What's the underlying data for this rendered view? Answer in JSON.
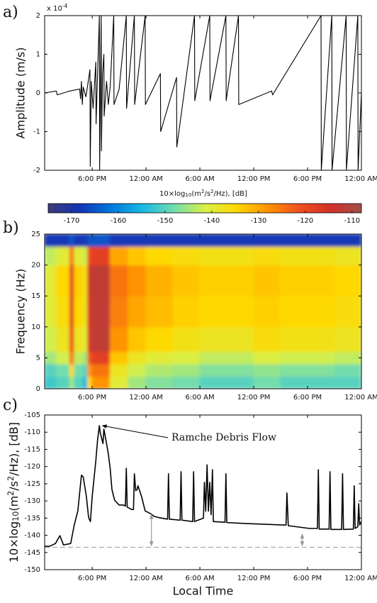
{
  "chart_data": [
    {
      "type": "line",
      "label": "a)",
      "ylabel": "Amplitude (m/s)",
      "y_multiplier": {
        "base": "x 10",
        "exponent": "-4"
      },
      "color": "#000000",
      "xlim": [
        12.7,
        48
      ],
      "ylim": [
        -2,
        2
      ],
      "xticks": [
        {
          "value": 18,
          "label": "6:00 PM"
        },
        {
          "value": 24,
          "label": "12:00 AM"
        },
        {
          "value": 30,
          "label": "6:00 AM"
        },
        {
          "value": 36,
          "label": "12:00 PM"
        },
        {
          "value": 42,
          "label": "6:00 PM"
        },
        {
          "value": 48,
          "label": "12:00 AM"
        }
      ],
      "yticks": [
        -2,
        -1,
        0,
        1,
        2
      ],
      "x": [
        12.7,
        14,
        14.1,
        15.5,
        16.6,
        16.7,
        16.8,
        16.9,
        17.0,
        17.3,
        17.75,
        17.78,
        17.9,
        18.1,
        18.4,
        18.43,
        18.6,
        18.8,
        18.83,
        19.0,
        19.03,
        19.15,
        19.3,
        19.33,
        19.6,
        19.8,
        20.0,
        20.4,
        20.43,
        21.0,
        21.8,
        21.83,
        22.7,
        22.73,
        23.9,
        23.93,
        25.6,
        25.63,
        27.4,
        27.43,
        29.4,
        29.43,
        31.1,
        31.13,
        32.9,
        32.93,
        34.3,
        34.33,
        38,
        38.1,
        43.5,
        43.53,
        44.7,
        44.73,
        46.3,
        46.33,
        47.6,
        47.63,
        48
      ],
      "values": [
        0,
        0.05,
        -0.05,
        0.05,
        0.1,
        -0.15,
        0.3,
        -0.3,
        0.15,
        -0.1,
        0.6,
        -1.9,
        0.3,
        -0.4,
        0.8,
        -0.8,
        0.5,
        2,
        -2,
        2,
        -1.5,
        0.5,
        1.0,
        -0.6,
        0.3,
        -0.3,
        0.15,
        2,
        -0.3,
        0.1,
        2,
        -0.4,
        2,
        -0.3,
        2,
        -0.3,
        0.5,
        -1.0,
        0.4,
        -1.4,
        2,
        -0.2,
        2,
        -0.2,
        2,
        -0.2,
        2,
        -0.3,
        0.05,
        -0.05,
        2,
        -2,
        2,
        -2,
        2,
        -2,
        2,
        -2,
        0
      ]
    },
    {
      "type": "heatmap",
      "label": "b)",
      "ylabel": "Frequency (Hz)",
      "colorbar_label": [
        {
          "text": "10×log"
        },
        {
          "text": "10",
          "script": "sub"
        },
        {
          "text": "(m"
        },
        {
          "text": "2",
          "script": "sup"
        },
        {
          "text": "/s"
        },
        {
          "text": "2",
          "script": "sup"
        },
        {
          "text": "/Hz), [dB]"
        }
      ],
      "clim": [
        -175,
        -108
      ],
      "colorbar_ticks": [
        -170,
        -160,
        -150,
        -140,
        -130,
        -120,
        -110
      ],
      "colormap": [
        "#3c3c78",
        "#1434b4",
        "#0078dc",
        "#18b8e4",
        "#70dcb0",
        "#d8f048",
        "#ffd800",
        "#ff9400",
        "#f05020",
        "#d43028",
        "#a0504a"
      ],
      "xlim": [
        12.7,
        48
      ],
      "ylim": [
        0,
        25
      ],
      "xticks": [
        {
          "value": 18,
          "label": "6:00 PM"
        },
        {
          "value": 24,
          "label": "12:00 AM"
        },
        {
          "value": 30,
          "label": "6:00 AM"
        },
        {
          "value": 36,
          "label": "12:00 PM"
        },
        {
          "value": 42,
          "label": "6:00 PM"
        },
        {
          "value": 48,
          "label": "12:00 AM"
        }
      ],
      "yticks": [
        0,
        5,
        10,
        15,
        20,
        25
      ],
      "x_edges": [
        12.7,
        14,
        15.5,
        16,
        17,
        17.5,
        18,
        20,
        22,
        24,
        27,
        30,
        33,
        36,
        39,
        42,
        45,
        48
      ],
      "y_edges": [
        0,
        2,
        4,
        6,
        10,
        15,
        20,
        23,
        25
      ],
      "z": [
        [
          -152,
          -150,
          -145,
          -150,
          -155,
          -135,
          -128,
          -140,
          -145,
          -147,
          -148,
          -150,
          -150,
          -148,
          -150,
          -150,
          -150
        ],
        [
          -150,
          -148,
          -135,
          -148,
          -150,
          -128,
          -125,
          -138,
          -142,
          -144,
          -145,
          -147,
          -147,
          -146,
          -147,
          -147,
          -148
        ],
        [
          -145,
          -142,
          -125,
          -143,
          -145,
          -122,
          -118,
          -133,
          -138,
          -140,
          -141,
          -143,
          -143,
          -141,
          -142,
          -142,
          -143
        ],
        [
          -142,
          -138,
          -120,
          -138,
          -140,
          -116,
          -112,
          -128,
          -133,
          -135,
          -137,
          -138,
          -138,
          -136,
          -137,
          -137,
          -138
        ],
        [
          -140,
          -136,
          -118,
          -135,
          -138,
          -115,
          -112,
          -126,
          -130,
          -132,
          -134,
          -135,
          -135,
          -134,
          -135,
          -135,
          -136
        ],
        [
          -140,
          -135,
          -118,
          -134,
          -137,
          -114,
          -112,
          -125,
          -128,
          -131,
          -133,
          -134,
          -134,
          -133,
          -134,
          -134,
          -135
        ],
        [
          -143,
          -140,
          -125,
          -140,
          -142,
          -120,
          -118,
          -130,
          -133,
          -135,
          -136,
          -137,
          -137,
          -136,
          -137,
          -137,
          -138
        ],
        [
          -168,
          -168,
          -165,
          -168,
          -168,
          -165,
          -165,
          -168,
          -168,
          -168,
          -168,
          -168,
          -168,
          -168,
          -168,
          -168,
          -168
        ]
      ]
    },
    {
      "type": "line",
      "label": "c)",
      "ylabel": [
        {
          "text": "10×log"
        },
        {
          "text": "10",
          "script": "sub"
        },
        {
          "text": "(m"
        },
        {
          "text": "2",
          "script": "sup"
        },
        {
          "text": "/s"
        },
        {
          "text": "2",
          "script": "sup"
        },
        {
          "text": "/Hz), [dB]"
        }
      ],
      "xlabel": "Local Time",
      "color": "#000000",
      "xlim": [
        12.7,
        48
      ],
      "ylim": [
        -150,
        -105
      ],
      "xticks": [
        {
          "value": 18,
          "label": "6:00 PM"
        },
        {
          "value": 24,
          "label": "12:00 AM"
        },
        {
          "value": 30,
          "label": "6:00 AM"
        },
        {
          "value": 36,
          "label": "12:00 PM"
        },
        {
          "value": 42,
          "label": "6:00 PM"
        },
        {
          "value": 48,
          "label": "12:00 AM"
        }
      ],
      "yticks": [
        -150,
        -145,
        -140,
        -135,
        -130,
        -125,
        -120,
        -115,
        -110,
        -105
      ],
      "x": [
        12.7,
        13.25,
        13.9,
        14.4,
        14.8,
        15.6,
        16.0,
        16.4,
        16.8,
        17.0,
        17.35,
        17.6,
        17.8,
        18.0,
        18.4,
        18.6,
        18.8,
        18.9,
        19.2,
        19.3,
        19.6,
        19.8,
        20.0,
        20.2,
        20.5,
        21.0,
        21.5,
        21.7,
        21.8,
        21.9,
        22.4,
        22.6,
        22.7,
        22.85,
        23.0,
        23.1,
        23.5,
        23.9,
        24.5,
        24.9,
        25.5,
        26.4,
        26.5,
        26.6,
        27.8,
        27.9,
        28.0,
        29.2,
        29.3,
        29.4,
        30.4,
        30.5,
        30.65,
        30.8,
        30.95,
        31.1,
        31.25,
        31.4,
        31.5,
        32.8,
        32.9,
        33.0,
        35.3,
        39.3,
        39.6,
        39.7,
        39.85,
        42.2,
        43.1,
        43.2,
        43.3,
        44.4,
        44.5,
        44.6,
        45.8,
        45.9,
        46.0,
        47.1,
        47.2,
        47.3,
        47.6,
        47.7,
        47.8,
        48.0
      ],
      "values": [
        -143.2,
        -143.2,
        -142.4,
        -140.1,
        -142.8,
        -142.4,
        -137.0,
        -132.9,
        -122.5,
        -123.0,
        -128.7,
        -134.9,
        -136.0,
        -128.7,
        -118.4,
        -112.2,
        -108.1,
        -110.2,
        -113.3,
        -109.1,
        -113.3,
        -116.4,
        -120.5,
        -126.7,
        -129.8,
        -131.2,
        -131.2,
        -131.5,
        -120.5,
        -131.8,
        -132.5,
        -132.5,
        -122.1,
        -127.0,
        -126.7,
        -125.6,
        -128.7,
        -132.9,
        -133.7,
        -134.5,
        -134.9,
        -135.3,
        -122.1,
        -135.3,
        -135.6,
        -121.5,
        -135.6,
        -136.0,
        -121.5,
        -136.0,
        -135.0,
        -124.6,
        -133.0,
        -119.5,
        -133.0,
        -124.6,
        -134.0,
        -120.9,
        -136.0,
        -136.2,
        -122.1,
        -136.3,
        -136.6,
        -137.0,
        -137.0,
        -127.7,
        -137.2,
        -138.0,
        -138.0,
        -120.9,
        -138.2,
        -138.2,
        -121.5,
        -138.3,
        -138.3,
        -122.1,
        -138.3,
        -138.2,
        -125.6,
        -138.0,
        -137.5,
        -130.8,
        -137.0,
        -136.0
      ],
      "reference_line": {
        "value": -143.5,
        "color": "#aaaaaa"
      },
      "arrows": [
        {
          "x": 24.6,
          "y": -133.5
        },
        {
          "x": 41.4,
          "y": -139.2
        }
      ],
      "annotation": {
        "text": "Ramche Debris Flow",
        "x": 18.8,
        "y": -108.1
      }
    }
  ]
}
